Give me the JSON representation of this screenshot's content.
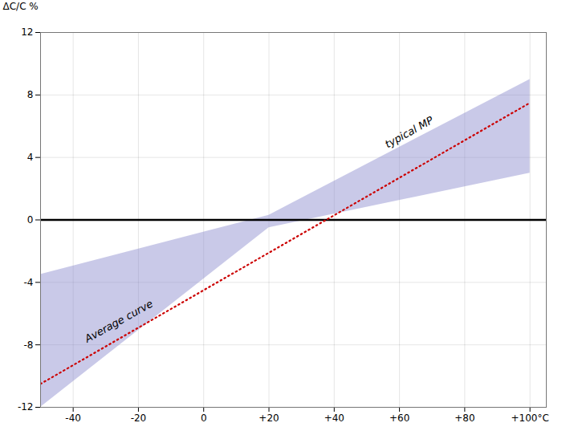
{
  "chart_data": {
    "type": "area",
    "y_label": "ΔC/C %",
    "xlim": [
      -50,
      105
    ],
    "xticks": [
      -40,
      -20,
      0,
      {
        "value": 20,
        "label": "+20"
      },
      {
        "value": 40,
        "label": "+40"
      },
      {
        "value": 60,
        "label": "+60"
      },
      {
        "value": 80,
        "label": "+80"
      },
      {
        "value": 100,
        "label": "+100°C"
      }
    ],
    "ylim": [
      -12,
      12
    ],
    "yticks": [
      -12,
      -8,
      -4,
      0,
      4,
      8,
      12
    ],
    "grid": true,
    "series": [
      {
        "type": "area",
        "color": "#8888cc",
        "x": [
          -50,
          20,
          100
        ],
        "upper": [
          -3.5,
          0.3,
          9.0
        ],
        "lower": [
          -12.0,
          -0.5,
          3.0
        ]
      },
      {
        "type": "line",
        "color": "#cc0000",
        "line_style": "dotted",
        "x": [
          -50,
          100
        ],
        "values": [
          -10.5,
          7.5
        ]
      }
    ],
    "zero_line": {
      "y": 0,
      "color": "#000000"
    },
    "annotations": [
      {
        "text": "Average curve",
        "x": -26,
        "y": -6.5
      },
      {
        "text": "typical MP",
        "x": 63,
        "y": 5.6
      }
    ]
  }
}
